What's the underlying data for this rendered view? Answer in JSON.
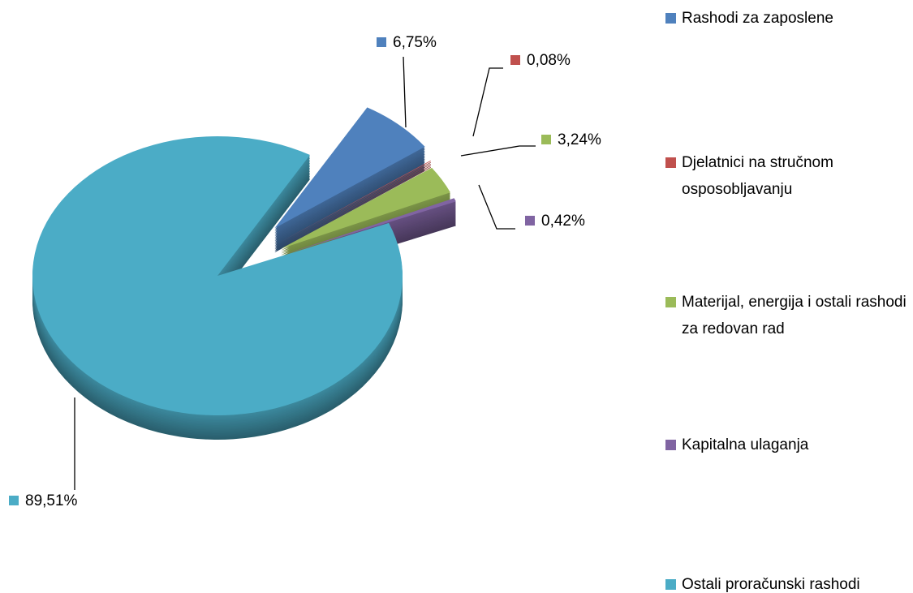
{
  "chart_data": {
    "type": "pie",
    "categories": [
      "Rashodi za zaposlene",
      "Djelatnici na stručnom osposobljavanju",
      "Materijal, energija i ostali rashodi za redovan rad",
      "Kapitalna ulaganja",
      "Ostali proračunski rashodi"
    ],
    "values": [
      6.75,
      0.08,
      3.24,
      0.42,
      89.51
    ],
    "value_labels": [
      "6,75%",
      "0,08%",
      "3,24%",
      "0,42%",
      "89,51%"
    ],
    "colors": [
      "#4f81bd",
      "#c0504d",
      "#9bbb59",
      "#8064a2",
      "#4bacc6"
    ],
    "legend": "right"
  }
}
